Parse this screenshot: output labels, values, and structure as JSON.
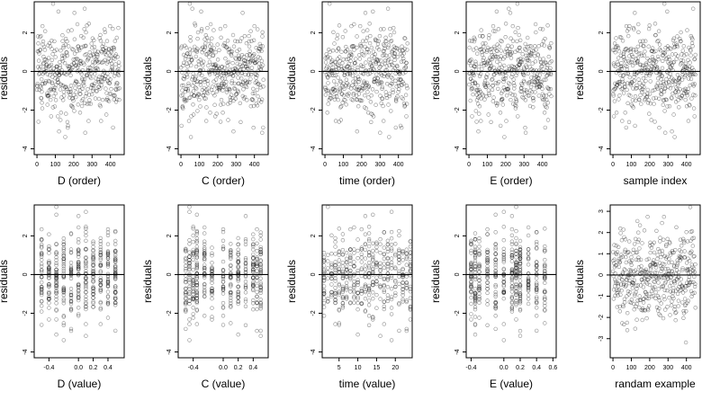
{
  "chart_data": [
    {
      "type": "scatter",
      "xlabel": "D (order)",
      "ylabel": "residuals",
      "xlim": [
        -15,
        475
      ],
      "ylim": [
        -4.3,
        3.6
      ],
      "xticks": [
        0,
        100,
        200,
        300,
        400
      ],
      "yticks": [
        -4,
        -2,
        0,
        2
      ],
      "hline": 0,
      "points": []
    },
    {
      "type": "scatter",
      "xlabel": "C (order)",
      "ylabel": "residuals",
      "xlim": [
        -15,
        475
      ],
      "ylim": [
        -4.3,
        3.6
      ],
      "xticks": [
        0,
        100,
        200,
        300,
        400
      ],
      "yticks": [
        -4,
        -2,
        0,
        2
      ],
      "hline": 0,
      "points": []
    },
    {
      "type": "scatter",
      "xlabel": "time (order)",
      "ylabel": "residuals",
      "xlim": [
        -15,
        475
      ],
      "ylim": [
        -4.3,
        3.6
      ],
      "xticks": [
        0,
        100,
        200,
        300,
        400
      ],
      "yticks": [
        -4,
        -2,
        0,
        2
      ],
      "hline": 0,
      "points": []
    },
    {
      "type": "scatter",
      "xlabel": "E (order)",
      "ylabel": "residuals",
      "xlim": [
        -15,
        475
      ],
      "ylim": [
        -4.3,
        3.6
      ],
      "xticks": [
        0,
        100,
        200,
        300,
        400
      ],
      "yticks": [
        -4,
        -2,
        0,
        2
      ],
      "hline": 0,
      "points": []
    },
    {
      "type": "scatter",
      "xlabel": "sample index",
      "ylabel": "residuals",
      "xlim": [
        -15,
        475
      ],
      "ylim": [
        -4.3,
        3.6
      ],
      "xticks": [
        0,
        100,
        200,
        300,
        400
      ],
      "yticks": [
        -4,
        -2,
        0,
        2
      ],
      "hline": 0,
      "points": []
    },
    {
      "type": "scatter",
      "xlabel": "D (value)",
      "ylabel": "residuals",
      "xlim": [
        -0.6,
        0.62
      ],
      "ylim": [
        -4.3,
        3.6
      ],
      "xticks": [
        -0.4,
        0,
        0.2,
        0.4
      ],
      "xtick_labels": [
        "-0.4",
        "0.0",
        "0.2",
        "0.4"
      ],
      "yticks": [
        -4,
        -2,
        0,
        2
      ],
      "hline": 0,
      "points": []
    },
    {
      "type": "scatter",
      "xlabel": "C (value)",
      "ylabel": "residuals",
      "xlim": [
        -0.6,
        0.6
      ],
      "ylim": [
        -4.3,
        3.6
      ],
      "xticks": [
        -0.4,
        0,
        0.2,
        0.4
      ],
      "xtick_labels": [
        "-0.4",
        "0.0",
        "0.2",
        "0.4"
      ],
      "yticks": [
        -4,
        -2,
        0,
        2
      ],
      "hline": 0,
      "points": []
    },
    {
      "type": "scatter",
      "xlabel": "time (value)",
      "ylabel": "residuals",
      "xlim": [
        0.5,
        24.5
      ],
      "ylim": [
        -4.3,
        3.6
      ],
      "xticks": [
        5,
        10,
        15,
        20
      ],
      "yticks": [
        -4,
        -2,
        0,
        2
      ],
      "hline": 0,
      "points": []
    },
    {
      "type": "scatter",
      "xlabel": "E (value)",
      "ylabel": "residuals",
      "xlim": [
        -0.46,
        0.64
      ],
      "ylim": [
        -4.3,
        3.6
      ],
      "xticks": [
        -0.4,
        0,
        0.2,
        0.4,
        0.6
      ],
      "xtick_labels": [
        "-0.4",
        "0.0",
        "0.2",
        "0.4",
        "0.6"
      ],
      "yticks": [
        -4,
        -2,
        0,
        2
      ],
      "hline": 0,
      "points": []
    },
    {
      "type": "scatter",
      "xlabel": "randam example",
      "ylabel": "residuals",
      "xlim": [
        -15,
        475
      ],
      "ylim": [
        -3.9,
        3.3
      ],
      "xticks": [
        0,
        100,
        200,
        300,
        400
      ],
      "yticks": [
        -3,
        -2,
        -1,
        0,
        1,
        2,
        3
      ],
      "hline": 0,
      "points": []
    }
  ],
  "style": {
    "point_color": "#000000",
    "point_opacity": 0.45,
    "line_color": "#000000",
    "frame_color": "#000000"
  }
}
